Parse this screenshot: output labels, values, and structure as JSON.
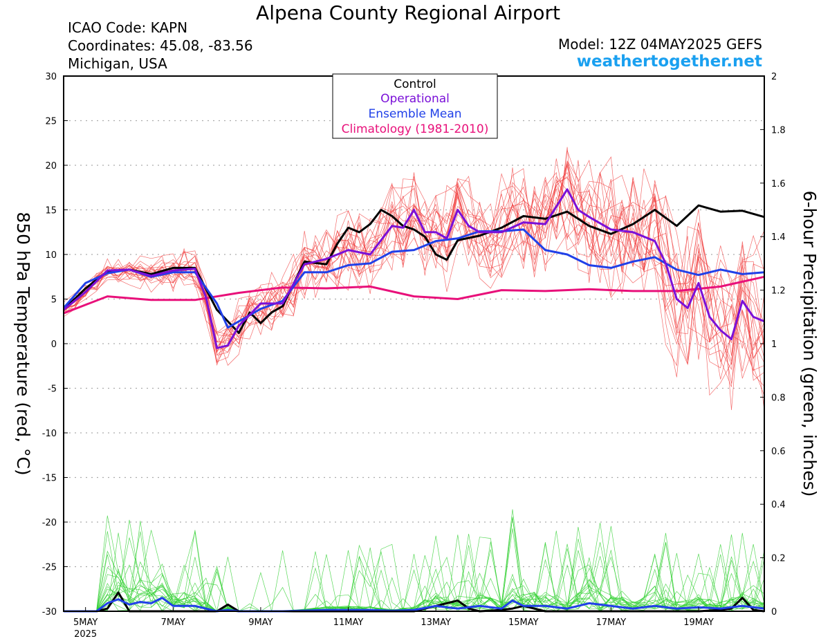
{
  "header": {
    "title": "Alpena County Regional Airport",
    "icao": "ICAO Code: KAPN",
    "coordinates": "Coordinates: 45.08, -83.56",
    "region": "Michigan, USA",
    "model": "Model: 12Z 04MAY2025 GEFS",
    "website": "weathertogether.net"
  },
  "colors": {
    "control": "#000000",
    "operational": "#7a10d8",
    "ensemble_mean": "#2040e8",
    "climatology": "#e8107a",
    "members_temp": "#f03a3a",
    "members_precip": "#30d030",
    "website": "#1aa0f0"
  },
  "chart_data": {
    "type": "line",
    "title": "Alpena County Regional Airport",
    "ylabel": "850 hPa Temperature (red, °C)",
    "y2label": "6-hour Precipitation (green, inches)",
    "ylim": [
      -30,
      30
    ],
    "y2lim": [
      0,
      2
    ],
    "yticks": [
      30,
      25,
      20,
      15,
      10,
      5,
      0,
      -5,
      -10,
      -15,
      -20,
      -25,
      -30
    ],
    "y2ticks": [
      2,
      1.8,
      1.6,
      1.4,
      1.2,
      1,
      0.8,
      0.6,
      0.4,
      0.2,
      0
    ],
    "x_unit": "days since 04MAY2025 12Z",
    "xlim": [
      0,
      16
    ],
    "xticks": [
      {
        "x": 0.5,
        "label": "5MAY",
        "sub": "2025"
      },
      {
        "x": 2.5,
        "label": "7MAY"
      },
      {
        "x": 4.5,
        "label": "9MAY"
      },
      {
        "x": 6.5,
        "label": "11MAY"
      },
      {
        "x": 8.5,
        "label": "13MAY"
      },
      {
        "x": 10.5,
        "label": "15MAY"
      },
      {
        "x": 12.5,
        "label": "17MAY"
      },
      {
        "x": 14.5,
        "label": "19MAY"
      }
    ],
    "grid": true,
    "legend_position": "top-center",
    "legend": [
      "Control",
      "Operational",
      "Ensemble Mean",
      "Climatology (1981-2010)"
    ],
    "series": [
      {
        "name": "Control",
        "axis": "temp",
        "color": "#000000",
        "x": [
          0,
          0.5,
          1,
          1.5,
          2,
          2.5,
          3,
          3.5,
          4,
          4.25,
          4.5,
          4.75,
          5,
          5.5,
          6,
          6.25,
          6.5,
          6.75,
          7,
          7.25,
          7.5,
          7.75,
          8,
          8.25,
          8.5,
          8.75,
          9,
          9.5,
          10,
          10.5,
          11,
          11.5,
          12,
          12.5,
          13,
          13.5,
          14,
          14.5,
          15,
          15.5,
          16
        ],
        "y": [
          3.8,
          6.2,
          8.1,
          8.3,
          7.8,
          8.5,
          8.5,
          3.8,
          1.2,
          3.5,
          2.3,
          3.5,
          4.2,
          9.2,
          8.9,
          11.2,
          13.0,
          12.5,
          13.4,
          15.0,
          14.3,
          13.2,
          12.8,
          12.0,
          10.0,
          9.4,
          11.6,
          12.1,
          13.0,
          14.3,
          14.0,
          14.8,
          13.2,
          12.3,
          13.4,
          15.0,
          13.2,
          15.5,
          14.8,
          14.9,
          14.2
        ]
      },
      {
        "name": "Operational",
        "axis": "temp",
        "color": "#7a10d8",
        "x": [
          0,
          0.5,
          1,
          1.5,
          2,
          2.5,
          3,
          3.25,
          3.5,
          3.75,
          4,
          4.5,
          5,
          5.5,
          6,
          6.5,
          7,
          7.5,
          7.75,
          8,
          8.25,
          8.5,
          8.75,
          9,
          9.25,
          9.5,
          10,
          10.5,
          11,
          11.5,
          11.75,
          12,
          12.5,
          13,
          13.5,
          13.75,
          14,
          14.25,
          14.5,
          14.75,
          15,
          15.25,
          15.5,
          15.75,
          16
        ],
        "y": [
          3.8,
          5.8,
          8.2,
          8.3,
          7.6,
          8.2,
          8.4,
          5.2,
          -0.5,
          -0.2,
          2.0,
          4.5,
          4.5,
          8.9,
          9.5,
          10.5,
          10.0,
          13.2,
          13.0,
          15.0,
          12.5,
          12.5,
          11.8,
          15.0,
          13.2,
          12.5,
          12.5,
          13.6,
          13.4,
          17.3,
          15.0,
          14.2,
          12.8,
          12.5,
          11.5,
          9.0,
          5.0,
          4.0,
          6.8,
          3.0,
          1.5,
          0.5,
          4.8,
          3.0,
          2.5
        ]
      },
      {
        "name": "Ensemble Mean",
        "axis": "temp",
        "color": "#2040e8",
        "x": [
          0,
          0.5,
          1,
          1.5,
          2,
          2.5,
          3,
          3.5,
          3.75,
          4,
          4.5,
          5,
          5.5,
          6,
          6.5,
          7,
          7.5,
          8,
          8.5,
          9,
          9.5,
          10,
          10.5,
          11,
          11.5,
          12,
          12.5,
          13,
          13.5,
          14,
          14.5,
          15,
          15.5,
          16
        ],
        "y": [
          4.0,
          6.8,
          7.9,
          8.3,
          7.5,
          8.0,
          8.0,
          4.5,
          1.8,
          2.5,
          3.9,
          4.8,
          8.0,
          8.0,
          8.8,
          9.0,
          10.3,
          10.5,
          11.5,
          11.8,
          12.6,
          12.6,
          12.8,
          10.5,
          10.0,
          8.8,
          8.5,
          9.2,
          9.7,
          8.3,
          7.7,
          8.3,
          7.8,
          8.0
        ]
      },
      {
        "name": "Climatology (1981-2010)",
        "axis": "temp",
        "color": "#e8107a",
        "x": [
          0,
          1,
          2,
          3,
          4,
          5,
          6,
          7,
          8,
          9,
          10,
          11,
          12,
          13,
          14,
          15,
          16
        ],
        "y": [
          3.4,
          5.3,
          4.9,
          4.9,
          5.7,
          6.3,
          6.2,
          6.4,
          5.3,
          5.0,
          6.0,
          5.9,
          6.1,
          5.9,
          5.9,
          6.4,
          7.5
        ]
      },
      {
        "name": "Control precip",
        "axis": "precip",
        "color": "#000000",
        "x": [
          0,
          0.75,
          1,
          1.25,
          1.5,
          2,
          3.5,
          3.75,
          4,
          8,
          8.5,
          9,
          9.25,
          9.5,
          10,
          10.25,
          10.5,
          11,
          12,
          14.5,
          15,
          15.25,
          15.5,
          15.75,
          16
        ],
        "y": [
          0,
          0,
          0.01,
          0.07,
          0,
          0,
          0,
          0.025,
          0,
          0,
          0.02,
          0.04,
          0.01,
          0,
          0.005,
          0.01,
          0.02,
          0,
          0,
          0,
          0.005,
          0.01,
          0.05,
          0.005,
          0
        ]
      },
      {
        "name": "Ensemble Mean precip",
        "axis": "precip",
        "color": "#2040e8",
        "x": [
          0,
          0.75,
          1,
          1.25,
          1.5,
          1.75,
          2,
          2.25,
          2.5,
          3,
          3.5,
          3.75,
          4,
          5,
          6,
          7,
          7.5,
          8,
          8.5,
          9,
          9.5,
          10,
          10.25,
          10.5,
          11,
          11.5,
          12,
          12.5,
          13,
          13.5,
          14,
          14.5,
          15,
          15.5,
          16
        ],
        "y": [
          0,
          0,
          0.03,
          0.045,
          0.025,
          0.035,
          0.03,
          0.05,
          0.02,
          0.02,
          0,
          0.005,
          0,
          0,
          0.005,
          0.005,
          0.002,
          0.005,
          0.02,
          0.01,
          0.02,
          0.01,
          0.04,
          0.02,
          0.02,
          0.01,
          0.03,
          0.02,
          0.01,
          0.02,
          0.01,
          0.015,
          0.01,
          0.02,
          0.01
        ]
      }
    ]
  }
}
